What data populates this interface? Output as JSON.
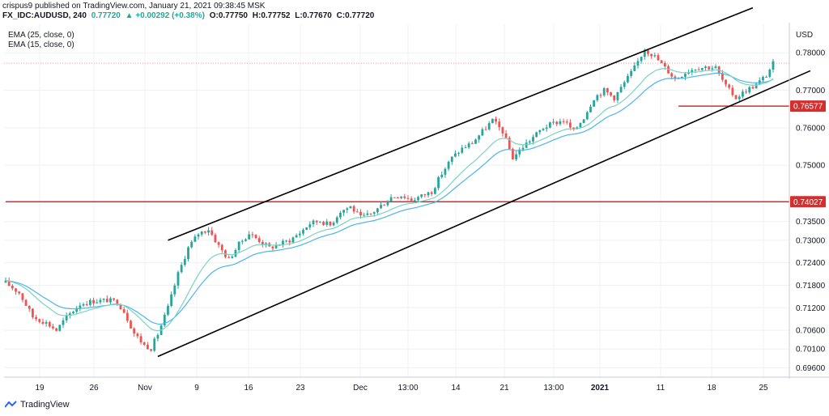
{
  "header": {
    "line1": "crispus9 published on TradingView.com, January 21, 2021 09:38:45 MSK",
    "symbol": "FX_IDC:AUDUSD, 240",
    "price": "0.77720",
    "change": "▲ +0.00292 (+0.38%)",
    "o": "O:0.77750",
    "h": "H:0.77752",
    "l": "L:0.77670",
    "c": "C:0.77720"
  },
  "legend": {
    "ema1": "EMA (25, close, 0)",
    "ema2": "EMA (15, close, 0)"
  },
  "footer": {
    "brand": "TradingView"
  },
  "colors": {
    "up": "#26a69a",
    "down": "#ef5350",
    "ema25": "#4db6e8",
    "ema15": "#7ad3c2",
    "hline": "#d32f2f",
    "channel": "#000000",
    "grid": "#eef0f3",
    "axis_text": "#131722"
  },
  "chart_data": {
    "type": "candlestick",
    "symbol": "FX_IDC:AUDUSD",
    "timeframe": "240",
    "currency": "USD",
    "y_axis_ticks": [
      "0.78000",
      "0.77000",
      "0.76000",
      "0.75000",
      "0.74000",
      "0.73500",
      "0.73000",
      "0.72400",
      "0.71800",
      "0.71200",
      "0.70600",
      "0.70100",
      "0.69600"
    ],
    "x_axis_ticks": [
      "19",
      "26",
      "Nov",
      "9",
      "16",
      "23",
      "Dec",
      "13:00",
      "14",
      "21",
      "13:00",
      "2021",
      "11",
      "18",
      "25"
    ],
    "ylim": [
      0.6935,
      0.7876
    ],
    "close_path": [
      [
        0,
        0.7187
      ],
      [
        4,
        0.716
      ],
      [
        8,
        0.7096
      ],
      [
        12,
        0.708
      ],
      [
        15,
        0.706
      ],
      [
        18,
        0.7095
      ],
      [
        22,
        0.713
      ],
      [
        26,
        0.7138
      ],
      [
        30,
        0.714
      ],
      [
        33,
        0.7136
      ],
      [
        35,
        0.711
      ],
      [
        38,
        0.7052
      ],
      [
        41,
        0.702
      ],
      [
        43,
        0.7012
      ],
      [
        45,
        0.705
      ],
      [
        48,
        0.712
      ],
      [
        51,
        0.721
      ],
      [
        54,
        0.728
      ],
      [
        57,
        0.7318
      ],
      [
        60,
        0.733
      ],
      [
        63,
        0.7285
      ],
      [
        66,
        0.7248
      ],
      [
        69,
        0.729
      ],
      [
        72,
        0.7318
      ],
      [
        75,
        0.73
      ],
      [
        78,
        0.728
      ],
      [
        81,
        0.729
      ],
      [
        84,
        0.73
      ],
      [
        87,
        0.732
      ],
      [
        90,
        0.7345
      ],
      [
        93,
        0.7352
      ],
      [
        96,
        0.734
      ],
      [
        99,
        0.7378
      ],
      [
        102,
        0.739
      ],
      [
        105,
        0.736
      ],
      [
        108,
        0.737
      ],
      [
        111,
        0.7392
      ],
      [
        114,
        0.7415
      ],
      [
        117,
        0.742
      ],
      [
        120,
        0.7408
      ],
      [
        123,
        0.7418
      ],
      [
        126,
        0.743
      ],
      [
        129,
        0.7478
      ],
      [
        132,
        0.752
      ],
      [
        135,
        0.7545
      ],
      [
        138,
        0.756
      ],
      [
        141,
        0.759
      ],
      [
        144,
        0.762
      ],
      [
        147,
        0.759
      ],
      [
        150,
        0.752
      ],
      [
        153,
        0.755
      ],
      [
        156,
        0.7575
      ],
      [
        159,
        0.76
      ],
      [
        162,
        0.7612
      ],
      [
        165,
        0.762
      ],
      [
        168,
        0.759
      ],
      [
        171,
        0.7628
      ],
      [
        174,
        0.768
      ],
      [
        177,
        0.77
      ],
      [
        180,
        0.768
      ],
      [
        183,
        0.772
      ],
      [
        186,
        0.776
      ],
      [
        189,
        0.781
      ],
      [
        192,
        0.779
      ],
      [
        195,
        0.776
      ],
      [
        198,
        0.773
      ],
      [
        201,
        0.7748
      ],
      [
        204,
        0.776
      ],
      [
        207,
        0.7762
      ],
      [
        210,
        0.776
      ],
      [
        213,
        0.771
      ],
      [
        216,
        0.768
      ],
      [
        219,
        0.77
      ],
      [
        222,
        0.7715
      ],
      [
        225,
        0.774
      ],
      [
        227,
        0.7772
      ]
    ],
    "n_candles": 228,
    "ema_periods": [
      25,
      15
    ],
    "price_line": 0.7772,
    "horizontal_lines": [
      {
        "price": 0.74027,
        "label": "0.74027",
        "from": 0,
        "to": 227
      },
      {
        "price": 0.76577,
        "label": "0.76577",
        "from": 199,
        "to": 227
      }
    ],
    "channel_lines": [
      {
        "x1": 45,
        "y1": 0.699,
        "x2": 238,
        "y2": 0.7752
      },
      {
        "x1": 48,
        "y1": 0.73,
        "x2": 221,
        "y2": 0.792
      }
    ],
    "title": "",
    "xlabel": "",
    "ylabel": ""
  }
}
